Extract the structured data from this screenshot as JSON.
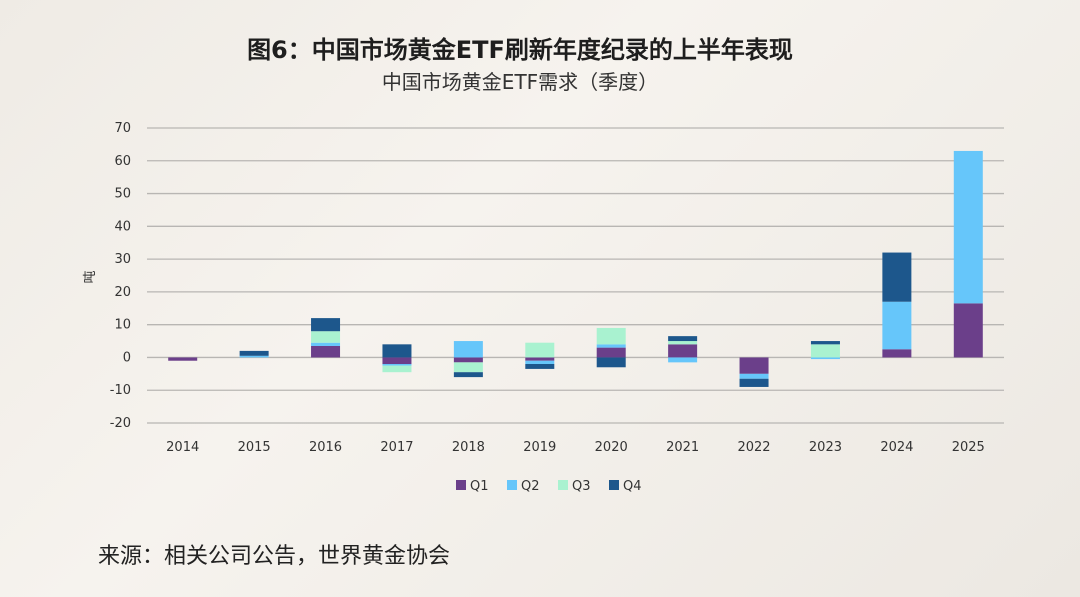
{
  "header": {
    "title": "图6：中国市场黄金ETF刷新年度纪录的上半年表现",
    "subtitle": "中国市场黄金ETF需求（季度）"
  },
  "source": "来源：相关公司公告，世界黄金协会",
  "chart_data": {
    "type": "bar",
    "stacked": true,
    "title": "中国市场黄金ETF需求（季度）",
    "xlabel": "",
    "ylabel": "吨",
    "ylim": [
      -20,
      70
    ],
    "yticks": [
      70,
      60,
      50,
      40,
      30,
      20,
      10,
      0,
      -10,
      -20
    ],
    "grid": true,
    "legend_position": "bottom",
    "categories": [
      "2014",
      "2015",
      "2016",
      "2017",
      "2018",
      "2019",
      "2020",
      "2021",
      "2022",
      "2023",
      "2024",
      "2025"
    ],
    "series": [
      {
        "name": "Q1",
        "color": "#6b3f8a",
        "values": [
          -1.0,
          0.0,
          3.5,
          -2.0,
          -1.5,
          -1.0,
          3.0,
          4.0,
          -5.0,
          0.0,
          2.5,
          16.5
        ]
      },
      {
        "name": "Q2",
        "color": "#66c6fa",
        "values": [
          0.0,
          0.5,
          1.0,
          -0.5,
          5.0,
          -1.0,
          1.0,
          -1.5,
          -1.5,
          -0.5,
          14.5,
          46.5
        ]
      },
      {
        "name": "Q3",
        "color": "#a9f2d0",
        "values": [
          0.0,
          0.0,
          3.5,
          -2.0,
          -3.0,
          4.5,
          5.0,
          1.0,
          0.0,
          4.0,
          0.0,
          0.0
        ]
      },
      {
        "name": "Q4",
        "color": "#1d578c",
        "values": [
          0.0,
          1.5,
          4.0,
          4.0,
          -1.5,
          -1.5,
          -3.0,
          1.5,
          -2.5,
          1.0,
          15.0,
          0.0
        ]
      }
    ]
  }
}
